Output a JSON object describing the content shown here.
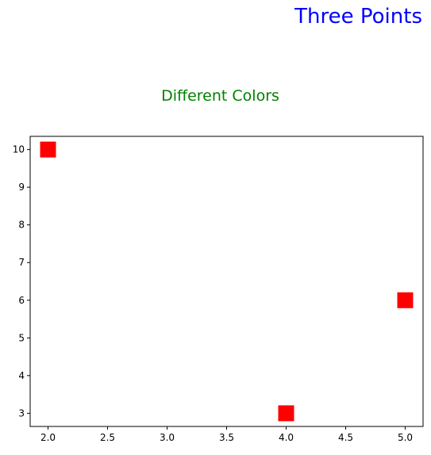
{
  "chart_data": {
    "type": "scatter",
    "suptitle": "Three Points",
    "title": "Different Colors",
    "xlabel": "",
    "ylabel": "",
    "points": [
      {
        "x": 2,
        "y": 10
      },
      {
        "x": 4,
        "y": 3
      },
      {
        "x": 5,
        "y": 6
      }
    ],
    "marker": "square",
    "marker_color": "#ff0000",
    "suptitle_color": "#0000ff",
    "title_color": "#008000",
    "xlim": [
      1.85,
      5.15
    ],
    "ylim": [
      2.65,
      10.35
    ],
    "x_ticks": [
      2.0,
      2.5,
      3.0,
      3.5,
      4.0,
      4.5,
      5.0
    ],
    "x_tick_labels": [
      "2.0",
      "2.5",
      "3.0",
      "3.5",
      "4.0",
      "4.5",
      "5.0"
    ],
    "y_ticks": [
      3,
      4,
      5,
      6,
      7,
      8,
      9,
      10
    ],
    "y_tick_labels": [
      "3",
      "4",
      "5",
      "6",
      "7",
      "8",
      "9",
      "10"
    ],
    "grid": false,
    "legend": "none"
  }
}
